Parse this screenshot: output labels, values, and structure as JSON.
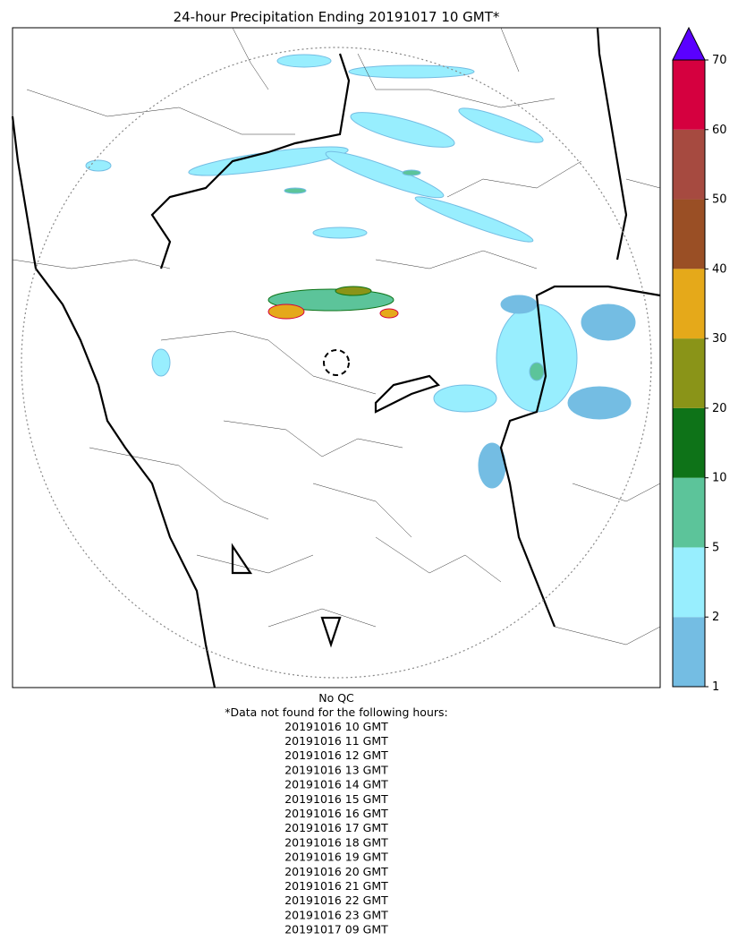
{
  "title": "24-hour Precipitation Ending 20191017 10 GMT*",
  "colorbar": {
    "bins": [
      1,
      2,
      5,
      10,
      20,
      30,
      40,
      50,
      60,
      70
    ],
    "colors": [
      "#74bde3",
      "#98eefe",
      "#5cc49a",
      "#0e7318",
      "#8a9418",
      "#e5a91a",
      "#9a4f25",
      "#a64a40",
      "#d5003f"
    ],
    "extend_color": "#5a00ff"
  },
  "notes": {
    "qc": "No QC",
    "missing_header": "*Data not found for the following hours:",
    "missing_hours": [
      "20191016 10 GMT",
      "20191016 11 GMT",
      "20191016 12 GMT",
      "20191016 13 GMT",
      "20191016 14 GMT",
      "20191016 15 GMT",
      "20191016 16 GMT",
      "20191016 17 GMT",
      "20191016 18 GMT",
      "20191016 19 GMT",
      "20191016 20 GMT",
      "20191016 21 GMT",
      "20191016 22 GMT",
      "20191016 23 GMT",
      "20191017 09 GMT"
    ]
  }
}
